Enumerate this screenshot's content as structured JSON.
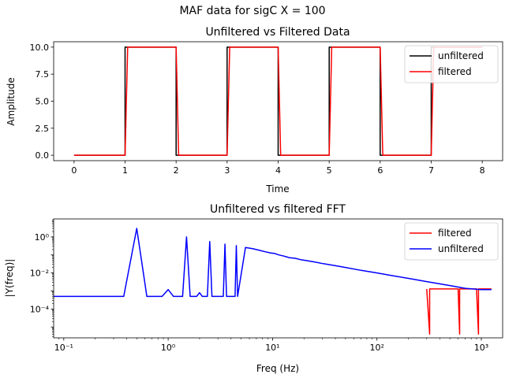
{
  "suptitle": "MAF data for sigC  X = 100",
  "chart_data": [
    {
      "type": "line",
      "title": "Unfiltered vs Filtered Data",
      "xlabel": "Time",
      "ylabel": "Amplitude",
      "xlim": [
        -0.4,
        8.4
      ],
      "ylim": [
        -0.5,
        10.5
      ],
      "xticks": [
        0,
        1,
        2,
        3,
        4,
        5,
        6,
        7,
        8
      ],
      "xtick_labels": [
        "0",
        "1",
        "2",
        "3",
        "4",
        "5",
        "6",
        "7",
        "8"
      ],
      "yticks": [
        0,
        2.5,
        5,
        7.5,
        10
      ],
      "ytick_labels": [
        "0.0",
        "2.5",
        "5.0",
        "7.5",
        "10.0"
      ],
      "legend_position": "top-right",
      "series": [
        {
          "name": "unfiltered",
          "color": "#000000",
          "x": [
            0,
            1,
            1,
            2,
            2,
            3,
            3,
            4,
            4,
            5,
            5,
            6,
            6,
            7,
            7,
            8
          ],
          "y": [
            0,
            0,
            10,
            10,
            0,
            0,
            10,
            10,
            0,
            0,
            10,
            10,
            0,
            0,
            10,
            10
          ]
        },
        {
          "name": "filtered",
          "color": "#ff0000",
          "x": [
            0,
            1.0,
            1.05,
            2.0,
            2.05,
            3.0,
            3.05,
            4.0,
            4.05,
            5.0,
            5.05,
            6.0,
            6.05,
            7.0,
            7.05,
            8
          ],
          "y": [
            0,
            0,
            10,
            10,
            0,
            0,
            10,
            10,
            0,
            0,
            10,
            10,
            0,
            0,
            10,
            10
          ]
        }
      ]
    },
    {
      "type": "line",
      "title": "Unfiltered vs filtered FFT",
      "xlabel": "Freq (Hz)",
      "ylabel": "|Y(freq)|",
      "xscale": "log",
      "yscale": "log",
      "xlim": [
        0.08,
        1600
      ],
      "ylim": [
        2.5e-06,
        10
      ],
      "xticks": [
        0.1,
        1,
        10,
        100,
        1000
      ],
      "xtick_labels": [
        "10⁻¹",
        "10⁰",
        "10¹",
        "10²",
        "10³"
      ],
      "yticks": [
        0.0001,
        0.01,
        1
      ],
      "ytick_labels": [
        "10⁻⁴",
        "10⁻²",
        "10⁰"
      ],
      "legend_position": "top-right",
      "series": [
        {
          "name": "filtered",
          "color": "#ff0000",
          "x": [
            300,
            320,
            320,
            600,
            620,
            620,
            900,
            940,
            940,
            1250
          ],
          "y": [
            0.0013,
            4e-06,
            0.0013,
            0.0013,
            4e-06,
            0.0013,
            0.0013,
            4e-06,
            0.0013,
            0.0013
          ]
        },
        {
          "name": "unfiltered",
          "color": "#0000ff",
          "x": [
            0.01,
            0.375,
            0.5,
            0.625,
            0.875,
            1.0,
            1.125,
            1.375,
            1.5,
            1.625,
            1.875,
            2.0,
            2.125,
            2.375,
            2.5,
            2.625,
            2.875,
            3.0,
            3.125,
            3.375,
            3.5,
            3.625,
            3.875,
            4.0,
            4.125,
            4.375,
            4.5,
            4.625,
            5.5,
            6.5,
            7.5,
            8.5,
            9.5,
            10.5,
            11.5,
            12.5,
            13.5,
            14.5,
            16.5,
            18.5,
            20.5,
            25.5,
            30.5,
            40.5,
            50.5,
            70.5,
            100.5,
            150.5,
            200.5,
            300.5,
            500.5,
            700.5,
            1000.5,
            1250
          ],
          "y": [
            0.0005,
            0.0005,
            3.0,
            0.0005,
            0.0005,
            0.0012,
            0.0005,
            0.0005,
            1.0,
            0.0005,
            0.0005,
            0.0008,
            0.0005,
            0.0005,
            0.55,
            0.0005,
            0.0005,
            0.0005,
            0.0005,
            0.0005,
            0.4,
            0.0005,
            0.0005,
            0.0005,
            0.0005,
            0.0005,
            0.33,
            0.0005,
            0.26,
            0.22,
            0.18,
            0.15,
            0.13,
            0.12,
            0.1,
            0.09,
            0.08,
            0.07,
            0.065,
            0.055,
            0.05,
            0.04,
            0.033,
            0.025,
            0.02,
            0.014,
            0.01,
            0.0066,
            0.005,
            0.0033,
            0.002,
            0.0014,
            0.0012,
            0.0012
          ]
        }
      ]
    }
  ]
}
